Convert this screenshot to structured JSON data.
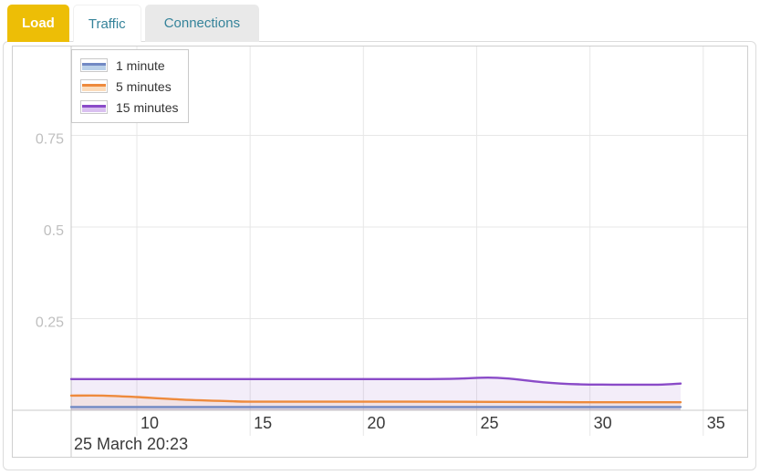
{
  "tabs": [
    {
      "label": "Load",
      "active": true
    },
    {
      "label": "Traffic",
      "active": false
    },
    {
      "label": "Connections",
      "active": false
    }
  ],
  "colors": {
    "active_tab_bg": "#edbe06",
    "active_tab_text": "#ffffff",
    "inactive_tab_text": "#35839a",
    "connections_tab_bg": "#e9e9e9",
    "grid_line": "#e7e7e7",
    "axis_line": "#c9c9c9",
    "x_label_text": "#3a3a3a",
    "y_label_text": "#bfbfbf",
    "caption_text": "#3a3a3a"
  },
  "chart_data": {
    "type": "area",
    "title": "Load",
    "caption": "25 March 20:23",
    "grid": true,
    "legend_position": "top-left",
    "x_axis": {
      "ticks": [
        10,
        15,
        20,
        25,
        30,
        35
      ],
      "range": [
        7.1,
        37
      ],
      "unit": "minute"
    },
    "y_axis": {
      "ticks": [
        0.25,
        0.5,
        0.75
      ],
      "range": [
        0,
        1
      ]
    },
    "series": [
      {
        "name": "1 minute",
        "color": "#7289c4",
        "fill": "rgba(114,137,196,0.18)",
        "legend_fill": "#bad0e9",
        "points": [
          [
            7.1,
            0.009
          ],
          [
            12,
            0.009
          ],
          [
            18,
            0.009
          ],
          [
            24,
            0.009
          ],
          [
            30,
            0.009
          ],
          [
            34,
            0.009
          ]
        ]
      },
      {
        "name": "5 minutes",
        "color": "#ee8a3c",
        "fill": "rgba(238,138,60,0.11)",
        "legend_fill": "#fbdcbb",
        "points": [
          [
            7.1,
            0.04
          ],
          [
            8.5,
            0.04
          ],
          [
            10,
            0.036
          ],
          [
            12,
            0.029
          ],
          [
            14,
            0.025
          ],
          [
            15,
            0.0235
          ],
          [
            18,
            0.0235
          ],
          [
            22,
            0.0235
          ],
          [
            26,
            0.023
          ],
          [
            30,
            0.022
          ],
          [
            34,
            0.022
          ]
        ]
      },
      {
        "name": "15 minutes",
        "color": "#8a4bc8",
        "fill": "rgba(138,75,200,0.10)",
        "legend_fill": "#d9c0f0",
        "points": [
          [
            7.1,
            0.085
          ],
          [
            10,
            0.085
          ],
          [
            14,
            0.085
          ],
          [
            18,
            0.085
          ],
          [
            22,
            0.085
          ],
          [
            24,
            0.086
          ],
          [
            25.5,
            0.089
          ],
          [
            26.5,
            0.086
          ],
          [
            28,
            0.076
          ],
          [
            29.5,
            0.071
          ],
          [
            31,
            0.07
          ],
          [
            33,
            0.07
          ],
          [
            34,
            0.073
          ]
        ]
      }
    ]
  }
}
